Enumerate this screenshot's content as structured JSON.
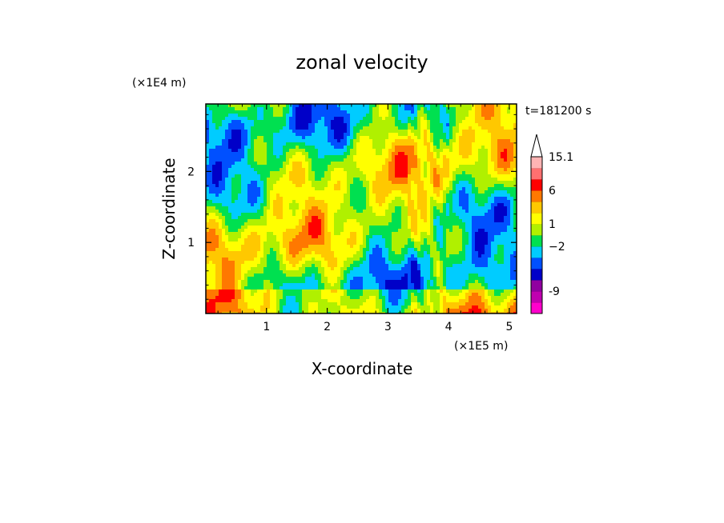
{
  "chart_data": {
    "type": "heatmap",
    "title": "zonal velocity",
    "xlabel": "X-coordinate",
    "ylabel": "Z-coordinate",
    "x_scale_label": "(×1E5 m)",
    "y_scale_label": "(×1E4 m)",
    "time_label": "t=181200 s",
    "xlim": [
      0,
      5.12
    ],
    "ylim": [
      0,
      2.95
    ],
    "x_ticks": [
      1,
      2,
      3,
      4,
      5
    ],
    "x_tick_labels": [
      "1",
      "2",
      "3",
      "4",
      "5"
    ],
    "y_ticks": [
      1,
      2
    ],
    "y_tick_labels": [
      "1",
      "2"
    ],
    "colorbar": {
      "levels": [
        {
          "color": "#ff00cc"
        },
        {
          "color": "#c000b0"
        },
        {
          "color": "#9000a0"
        },
        {
          "color": "#0000c8"
        },
        {
          "color": "#0050ff"
        },
        {
          "color": "#00ccff"
        },
        {
          "color": "#00e050"
        },
        {
          "color": "#b0f000"
        },
        {
          "color": "#ffff00"
        },
        {
          "color": "#ffc800"
        },
        {
          "color": "#ff7800"
        },
        {
          "color": "#ff0000"
        },
        {
          "color": "#ff7070"
        },
        {
          "color": "#ffb4b4"
        }
      ],
      "labels": [
        {
          "text": "-9",
          "level_boundary": 2
        },
        {
          "text": "−2",
          "level_boundary": 6
        },
        {
          "text": "1",
          "level_boundary": 8
        },
        {
          "text": "6",
          "level_boundary": 11
        },
        {
          "text": "15.1",
          "level_boundary": 14
        }
      ]
    },
    "field_colors": {
      "strong_negative": "#0000c8",
      "negative": "#0050ff",
      "weak_negative": "#00ccff",
      "near_zero": "#00e050",
      "weak_positive": "#b0f000",
      "positive": "#ffff00",
      "strong_positive": "#ffc800",
      "very_positive": "#ff7800",
      "extreme": "#ff0000"
    }
  }
}
